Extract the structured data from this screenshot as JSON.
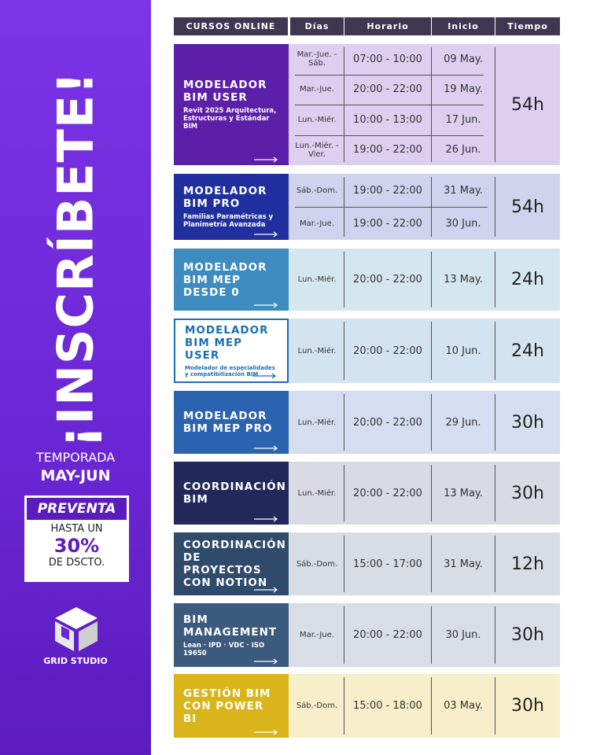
{
  "sidebar": {
    "title": "¡INSCRÍBETE!",
    "season_label": "TEMPORADA",
    "season": "MAY-JUN",
    "promo_label": "PREVENTA",
    "promo_prefix": "HASTA UN",
    "promo_value": "30%",
    "promo_suffix": "DE DSCTO.",
    "brand": "GRID STUDIO"
  },
  "table": {
    "headers": [
      "CURSOS ONLINE",
      "Días",
      "Horario",
      "Inicio",
      "Tiempo"
    ],
    "rows": [
      {
        "title": "MODELADOR BIM USER",
        "subtitle": "Revit 2025 Arquitectura, Estructuras y Estándar BIM",
        "duration": "54h",
        "sessions": [
          [
            "Mar.-Jue. -Sáb.",
            "07:00 - 10:00",
            "09 May."
          ],
          [
            "Mar.-Jue.",
            "20:00 - 22:00",
            "19 May."
          ],
          [
            "Lun.-Miér.",
            "10:00 - 13:00",
            "17 Jun."
          ],
          [
            "Lun.-Miér. -Vier.",
            "19:00 - 22:00",
            "26 Jun."
          ]
        ]
      },
      {
        "title": "MODELADOR BIM PRO",
        "subtitle": "Familias Paramétricas y Planimetría Avanzada",
        "duration": "54h",
        "sessions": [
          [
            "Sáb.-Dom.",
            "19:00 - 22:00",
            "31 May."
          ],
          [
            "Mar.-Jue.",
            "19:00 - 22:00",
            "30 Jun."
          ]
        ]
      },
      {
        "title": "MODELADOR BIM MEP DESDE 0",
        "subtitle": null,
        "duration": "24h",
        "sessions": [
          [
            "Lun.-Miér.",
            "20:00 - 22:00",
            "13 May."
          ]
        ]
      },
      {
        "title": "MODELADOR BIM MEP USER",
        "subtitle": "Modelador de especialidades y compatibilización BIM",
        "duration": "24h",
        "sessions": [
          [
            "Lun.-Miér.",
            "20:00 - 22:00",
            "10 Jun."
          ]
        ]
      },
      {
        "title": "MODELADOR BIM MEP PRO",
        "subtitle": null,
        "duration": "30h",
        "sessions": [
          [
            "Lun.-Miér.",
            "20:00 - 22:00",
            "29 Jun."
          ]
        ]
      },
      {
        "title": "COORDINACIÓN BIM",
        "subtitle": null,
        "duration": "30h",
        "sessions": [
          [
            "Lun.-Miér.",
            "20:00 - 22:00",
            "13 May."
          ]
        ]
      },
      {
        "title": "COORDINACIÓN DE PROYECTOS CON NOTION",
        "subtitle": null,
        "duration": "12h",
        "sessions": [
          [
            "Sáb.-Dom.",
            "15:00 - 17:00",
            "31 May."
          ]
        ]
      },
      {
        "title": "BIM MANAGEMENT",
        "subtitle": "Lean · IPD · VDC · ISO 19650",
        "duration": "30h",
        "sessions": [
          [
            "Mar.-Jue.",
            "20:00 - 22:00",
            "30 Jun."
          ]
        ]
      },
      {
        "title": "GESTIÓN BIM CON POWER BI",
        "subtitle": null,
        "duration": "30h",
        "sessions": [
          [
            "Sáb.-Dom.",
            "15:00 - 18:00",
            "03 May."
          ]
        ]
      }
    ]
  }
}
